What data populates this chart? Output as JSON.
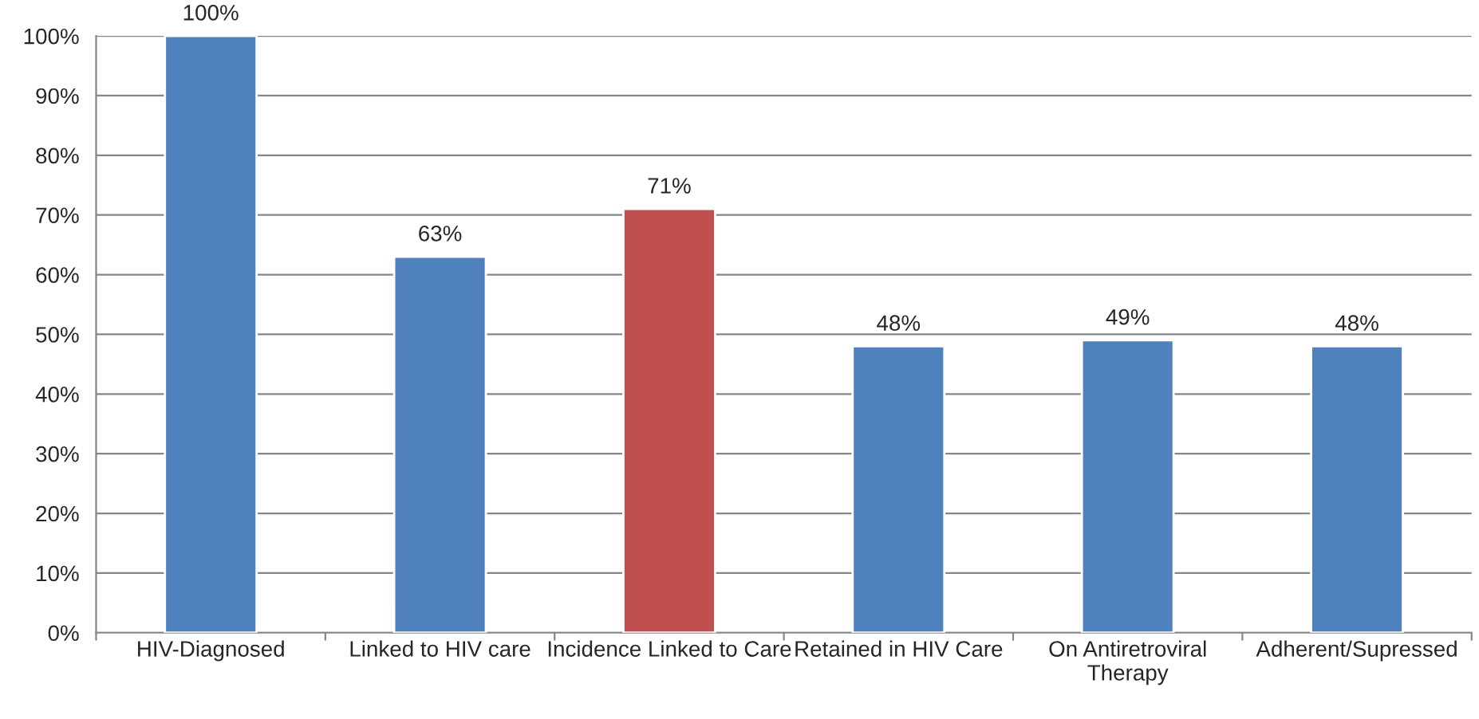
{
  "chart_data": {
    "type": "bar",
    "categories": [
      "HIV-Diagnosed",
      "Linked to HIV care",
      "Incidence Linked to Care",
      "Retained in HIV Care",
      "On Antiretroviral\nTherapy",
      "Adherent/Supressed"
    ],
    "values": [
      100,
      63,
      71,
      48,
      49,
      48
    ],
    "colors": [
      "#4f81bd",
      "#4f81bd",
      "#c0504d",
      "#4f81bd",
      "#4f81bd",
      "#4f81bd"
    ],
    "value_labels": [
      "100%",
      "63%",
      "71%",
      "48%",
      "49%",
      "48%"
    ],
    "ylim": [
      0,
      100
    ],
    "yticks": [
      {
        "value": 0,
        "label": "0%"
      },
      {
        "value": 10,
        "label": "10%"
      },
      {
        "value": 20,
        "label": "20%"
      },
      {
        "value": 30,
        "label": "30%"
      },
      {
        "value": 40,
        "label": "40%"
      },
      {
        "value": 50,
        "label": "50%"
      },
      {
        "value": 60,
        "label": "60%"
      },
      {
        "value": 70,
        "label": "70%"
      },
      {
        "value": 80,
        "label": "80%"
      },
      {
        "value": 90,
        "label": "90%"
      },
      {
        "value": 100,
        "label": "100%"
      }
    ],
    "grid": "y",
    "legend": false
  }
}
